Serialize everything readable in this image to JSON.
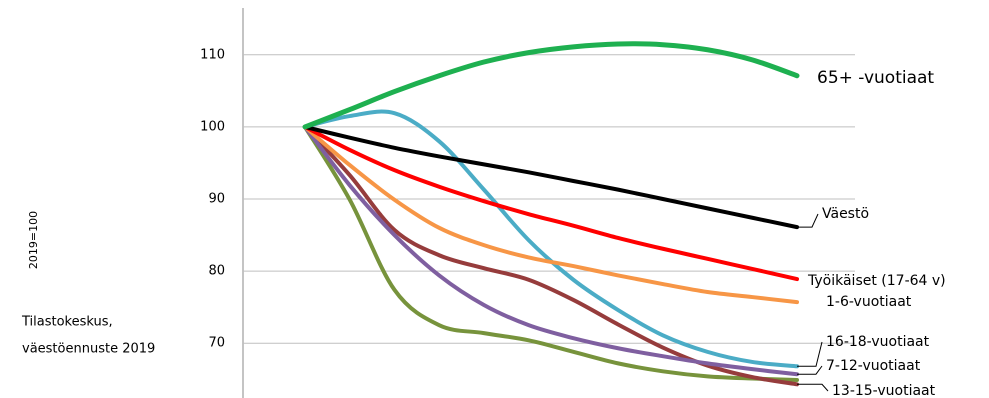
{
  "chart_data": {
    "type": "line",
    "ylabel": "2019=100",
    "note": [
      "Tilastokeskus,",
      "väestöennuste 2019"
    ],
    "categories": [
      null,
      null,
      null,
      null,
      null,
      null,
      null,
      null,
      null,
      null,
      null,
      null
    ],
    "ylim": [
      62.4,
      117.6
    ],
    "yticks": [
      70,
      80,
      90,
      100,
      110
    ],
    "grid": true,
    "series": [
      {
        "name": "65+ -vuotiaat",
        "color": "#1eb050",
        "values": [
          100,
          102.4,
          104.9,
          107.1,
          109.0,
          110.3,
          111.1,
          111.5,
          111.4,
          110.7,
          109.3,
          107.1
        ]
      },
      {
        "name": "Väestö",
        "color": "#000000",
        "values": [
          100,
          98.5,
          97.1,
          95.9,
          94.8,
          93.7,
          92.5,
          91.3,
          90.0,
          88.7,
          87.4,
          86.1
        ]
      },
      {
        "name": "Työikäiset (17-64 v)",
        "color": "#ff0000",
        "values": [
          100,
          96.8,
          94.0,
          91.7,
          89.7,
          87.9,
          86.3,
          84.6,
          83.1,
          81.7,
          80.3,
          78.9
        ]
      },
      {
        "name": "1-6-vuotiaat",
        "color": "#f79646",
        "values": [
          100,
          94.7,
          89.9,
          86.0,
          83.6,
          81.9,
          80.7,
          79.4,
          78.2,
          77.1,
          76.4,
          75.7
        ]
      },
      {
        "name": "16-18-vuotiaat",
        "color": "#4bacc6",
        "values": [
          100,
          101.5,
          101.9,
          98.0,
          91.3,
          84.3,
          78.8,
          74.6,
          71.1,
          68.8,
          67.4,
          66.8
        ]
      },
      {
        "name": "7-12-vuotiaat",
        "color": "#7f5fa0",
        "values": [
          100,
          91.9,
          85.0,
          79.4,
          75.3,
          72.5,
          70.7,
          69.3,
          68.2,
          67.2,
          66.4,
          65.7
        ]
      },
      {
        "name": "13-15-vuotiaat",
        "color": "#963c3c",
        "values": [
          100,
          93.3,
          85.7,
          82.2,
          80.4,
          78.8,
          76.0,
          72.6,
          69.4,
          66.9,
          65.3,
          64.3
        ]
      },
      {
        "color": "#77933c",
        "values": [
          100,
          89.9,
          77.4,
          72.5,
          71.4,
          70.4,
          68.8,
          67.2,
          66.1,
          65.4,
          65.1,
          64.9
        ]
      }
    ]
  }
}
